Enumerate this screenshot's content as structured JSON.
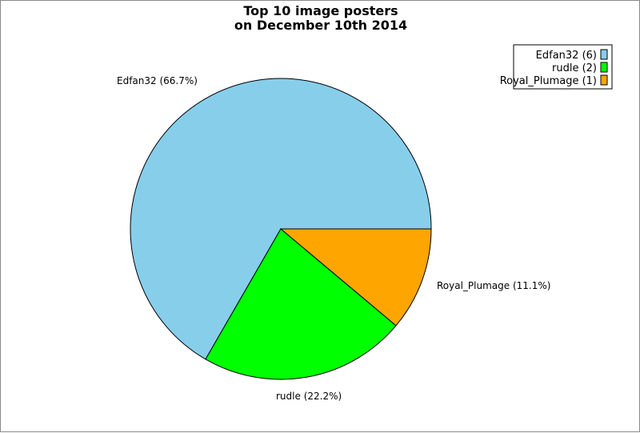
{
  "chart_data": {
    "type": "pie",
    "title": [
      "Top 10 image posters",
      "on December 10th 2014"
    ],
    "slices": [
      {
        "label": "Edfan32",
        "value": 6,
        "percent_label": "Edfan32 (66.7%)",
        "legend_label": "Edfan32 (6)",
        "color": "#87CEEB"
      },
      {
        "label": "rudle",
        "value": 2,
        "percent_label": "rudle (22.2%)",
        "legend_label": "rudle (2)",
        "color": "#00FF00"
      },
      {
        "label": "Royal_Plumage",
        "value": 1,
        "percent_label": "Royal_Plumage (11.1%)",
        "legend_label": "Royal_Plumage (1)",
        "color": "#FFA500"
      }
    ],
    "legend_position": "top-right",
    "start_angle": "3 o'clock",
    "direction": "counter-clockwise"
  }
}
